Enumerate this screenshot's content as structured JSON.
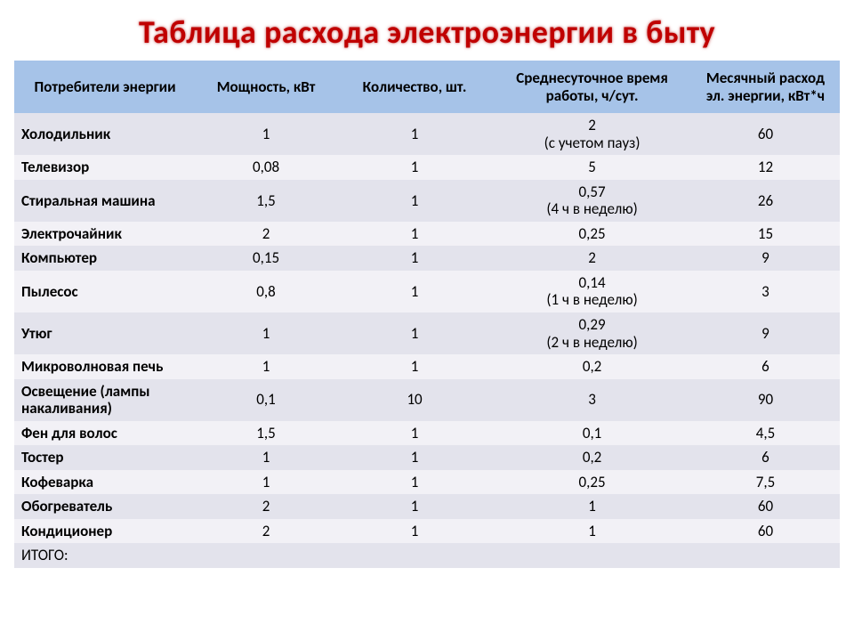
{
  "title": "Таблица расхода электроэнергии в быту",
  "table": {
    "type": "table",
    "header_bg": "#a6c3e8",
    "row_bg_odd": "#e3e3ec",
    "row_bg_even": "#f2f1f6",
    "title_color": "#c00000",
    "font_family": "Calibri",
    "col_widths_pct": [
      22,
      17,
      19,
      24,
      18
    ],
    "columns": [
      "Потребители энергии",
      "Мощность, кВт",
      "Количество, шт.",
      "Среднесуточное время работы, ч/сут.",
      "Месячный расход эл. энергии, кВт*ч"
    ],
    "rows": [
      {
        "name": "Холодильник",
        "power": "1",
        "qty": "1",
        "time": "2",
        "time_note": "(с учетом пауз)",
        "monthly": "60"
      },
      {
        "name": "Телевизор",
        "power": "0,08",
        "qty": "1",
        "time": "5",
        "time_note": "",
        "monthly": "12"
      },
      {
        "name": "Стиральная машина",
        "power": "1,5",
        "qty": "1",
        "time": "0,57",
        "time_note": "(4 ч в неделю)",
        "monthly": "26"
      },
      {
        "name": "Электрочайник",
        "power": "2",
        "qty": "1",
        "time": "0,25",
        "time_note": "",
        "monthly": "15"
      },
      {
        "name": "Компьютер",
        "power": "0,15",
        "qty": "1",
        "time": "2",
        "time_note": "",
        "monthly": "9"
      },
      {
        "name": "Пылесос",
        "power": "0,8",
        "qty": "1",
        "time": "0,14",
        "time_note": "(1 ч в неделю)",
        "monthly": "3"
      },
      {
        "name": "Утюг",
        "power": "1",
        "qty": "1",
        "time": "0,29",
        "time_note": "(2 ч в неделю)",
        "monthly": "9"
      },
      {
        "name": "Микроволновая печь",
        "power": "1",
        "qty": "1",
        "time": "0,2",
        "time_note": "",
        "monthly": "6"
      },
      {
        "name": "Освещение (лампы накаливания)",
        "power": "0,1",
        "qty": "10",
        "time": "3",
        "time_note": "",
        "monthly": "90"
      },
      {
        "name": "Фен для волос",
        "power": "1,5",
        "qty": "1",
        "time": "0,1",
        "time_note": "",
        "monthly": "4,5"
      },
      {
        "name": "Тостер",
        "power": "1",
        "qty": "1",
        "time": "0,2",
        "time_note": "",
        "monthly": "6"
      },
      {
        "name": "Кофеварка",
        "power": "1",
        "qty": "1",
        "time": "0,25",
        "time_note": "",
        "monthly": "7,5"
      },
      {
        "name": "Обогреватель",
        "power": "2",
        "qty": "1",
        "time": "1",
        "time_note": "",
        "monthly": "60"
      },
      {
        "name": "Кондиционер",
        "power": "2",
        "qty": "1",
        "time": "1",
        "time_note": "",
        "monthly": "60"
      }
    ],
    "total_label": "ИТОГО:"
  }
}
